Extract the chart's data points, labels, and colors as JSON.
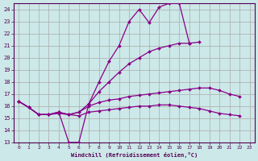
{
  "xlabel": "Windchill (Refroidissement éolien,°C)",
  "background_color": "#cce8e8",
  "grid_color": "#aaaaaa",
  "line_color": "#880088",
  "xlim": [
    -0.5,
    23.5
  ],
  "ylim": [
    13,
    24.5
  ],
  "yticks": [
    13,
    14,
    15,
    16,
    17,
    18,
    19,
    20,
    21,
    22,
    23,
    24
  ],
  "xticks": [
    0,
    1,
    2,
    3,
    4,
    5,
    6,
    7,
    8,
    9,
    10,
    11,
    12,
    13,
    14,
    15,
    16,
    17,
    18,
    19,
    20,
    21,
    22,
    23
  ],
  "lines": [
    {
      "x": [
        0,
        1,
        2,
        3,
        4,
        5,
        6,
        7,
        8,
        9,
        10,
        11,
        12,
        13,
        14,
        15,
        16,
        17
      ],
      "y": [
        16.4,
        15.9,
        15.3,
        15.3,
        15.5,
        13.0,
        13.0,
        16.2,
        18.0,
        19.7,
        21.0,
        23.0,
        24.0,
        22.9,
        24.2,
        24.5,
        24.5,
        21.2
      ]
    },
    {
      "x": [
        0,
        1,
        2,
        3,
        4,
        5,
        6,
        7,
        8,
        9,
        10,
        11,
        12,
        13,
        14,
        15,
        16,
        17,
        18
      ],
      "y": [
        16.4,
        15.9,
        15.3,
        15.3,
        15.5,
        15.3,
        15.5,
        16.2,
        17.2,
        18.0,
        18.8,
        19.5,
        20.0,
        20.5,
        20.8,
        21.0,
        21.2,
        21.2,
        21.3
      ]
    },
    {
      "x": [
        0,
        1,
        2,
        3,
        4,
        5,
        6,
        7,
        8,
        9,
        10,
        11,
        12,
        13,
        14,
        15,
        16,
        17,
        18,
        19,
        20,
        21,
        22
      ],
      "y": [
        16.4,
        15.9,
        15.3,
        15.3,
        15.5,
        15.3,
        15.5,
        16.0,
        16.3,
        16.5,
        16.6,
        16.8,
        16.9,
        17.0,
        17.1,
        17.2,
        17.3,
        17.4,
        17.5,
        17.5,
        17.3,
        17.0,
        16.8
      ]
    },
    {
      "x": [
        0,
        1,
        2,
        3,
        4,
        5,
        6,
        7,
        8,
        9,
        10,
        11,
        12,
        13,
        14,
        15,
        16,
        17,
        18,
        19,
        20,
        21,
        22
      ],
      "y": [
        16.4,
        15.9,
        15.3,
        15.3,
        15.4,
        15.3,
        15.2,
        15.5,
        15.6,
        15.7,
        15.8,
        15.9,
        16.0,
        16.0,
        16.1,
        16.1,
        16.0,
        15.9,
        15.8,
        15.6,
        15.4,
        15.3,
        15.2
      ]
    }
  ]
}
